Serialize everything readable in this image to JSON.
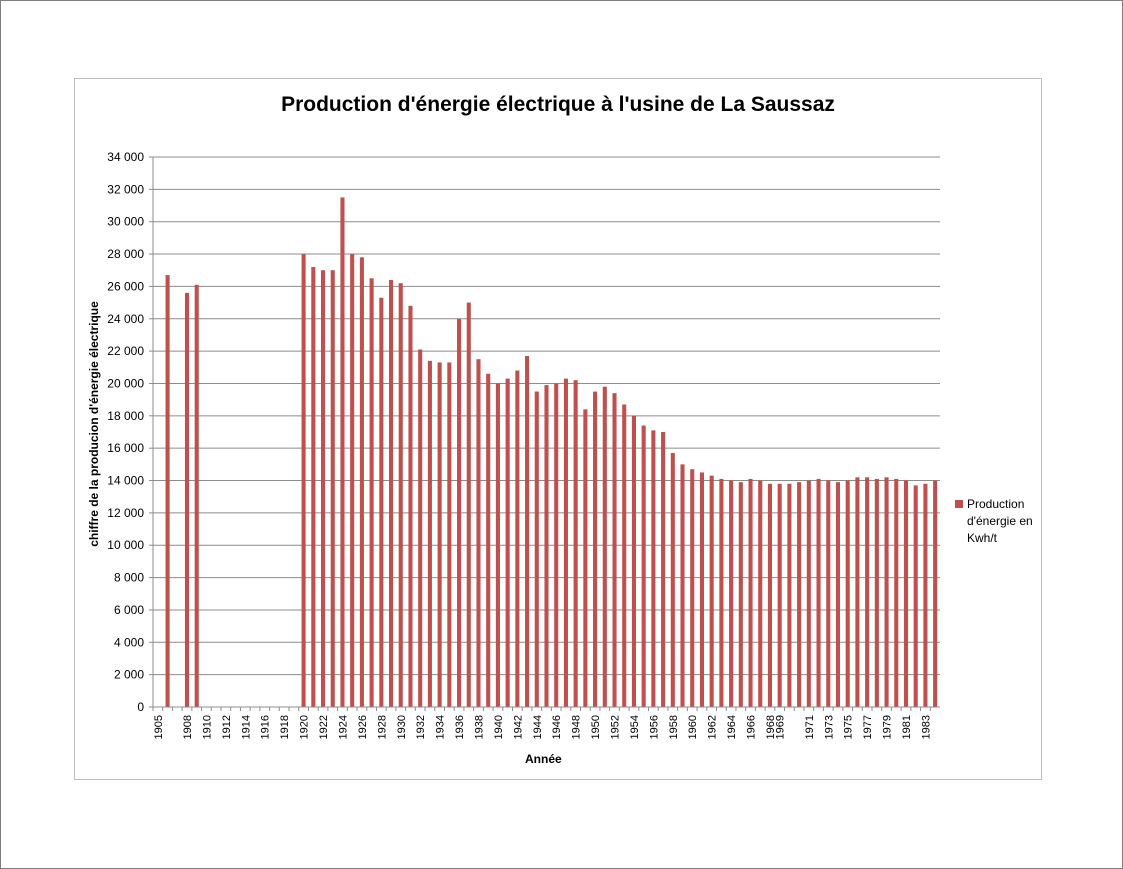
{
  "chart_data": {
    "type": "bar",
    "title": "Production d'énergie électrique à l'usine de La Saussaz",
    "xlabel": "Année",
    "ylabel": "chiffre de la producion d'énergie électrique",
    "ylim": [
      0,
      34000
    ],
    "y_ticks": [
      "0",
      "2 000",
      "4 000",
      "6 000",
      "8 000",
      "10 000",
      "12 000",
      "14 000",
      "16 000",
      "18 000",
      "20 000",
      "22 000",
      "24 000",
      "26 000",
      "28 000",
      "30 000",
      "32 000",
      "34 000"
    ],
    "grid": true,
    "legend_position": "right",
    "bar_color": "#C0504D",
    "categories": [
      "1905",
      "1906",
      "1907",
      "1908",
      "1909",
      "1910",
      "1911",
      "1912",
      "1913",
      "1914",
      "1915",
      "1916",
      "1917",
      "1918",
      "1919",
      "1920",
      "1921",
      "1922",
      "1923",
      "1924",
      "1925",
      "1926",
      "1927",
      "1928",
      "1929",
      "1930",
      "1931",
      "1932",
      "1933",
      "1934",
      "1935",
      "1936",
      "1937",
      "1938",
      "1939",
      "1940",
      "1941",
      "1942",
      "1943",
      "1944",
      "1945",
      "1946",
      "1947",
      "1948",
      "1949",
      "1950",
      "1951",
      "1952",
      "1953",
      "1954",
      "1955",
      "1956",
      "1957",
      "1958",
      "1959",
      "1960",
      "1961",
      "1962",
      "1963",
      "1964",
      "1965",
      "1966",
      "1967",
      "1968",
      "1969",
      "1969",
      "1970",
      "1971",
      "1972",
      "1973",
      "1974",
      "1975",
      "1976",
      "1977",
      "1978",
      "1979",
      "1980",
      "1981",
      "1982",
      "1983",
      "1984"
    ],
    "shown_labels": [
      "1905",
      "1908",
      "1910",
      "1912",
      "1914",
      "1916",
      "1918",
      "1920",
      "1922",
      "1924",
      "1926",
      "1928",
      "1930",
      "1932",
      "1934",
      "1936",
      "1938",
      "1940",
      "1942",
      "1944",
      "1946",
      "1948",
      "1950",
      "1952",
      "1954",
      "1956",
      "1958",
      "1960",
      "1962",
      "1964",
      "1966",
      "1968",
      "1969",
      "1971",
      "1973",
      "1975",
      "1977",
      "1979",
      "1981",
      "1983"
    ],
    "series": [
      {
        "name": "Production d'énergie en Kwh/t",
        "values": [
          null,
          26700,
          null,
          25600,
          26100,
          null,
          null,
          null,
          null,
          null,
          null,
          null,
          null,
          null,
          null,
          28000,
          27200,
          27000,
          27000,
          31500,
          28000,
          27800,
          26500,
          25300,
          26400,
          26200,
          24800,
          22100,
          21400,
          21300,
          21300,
          24000,
          25000,
          21500,
          20600,
          20000,
          20300,
          20800,
          21700,
          19500,
          19900,
          20000,
          20300,
          20200,
          18400,
          19500,
          19800,
          19400,
          18700,
          18000,
          17400,
          17100,
          17000,
          15700,
          15000,
          14700,
          14500,
          14300,
          14100,
          14000,
          13900,
          14100,
          14000,
          13800,
          13800,
          13800,
          13900,
          14000,
          14100,
          14000,
          13900,
          14000,
          14200,
          14200,
          14100,
          14200,
          14100,
          14000,
          13700,
          13800,
          14000
        ]
      }
    ]
  }
}
